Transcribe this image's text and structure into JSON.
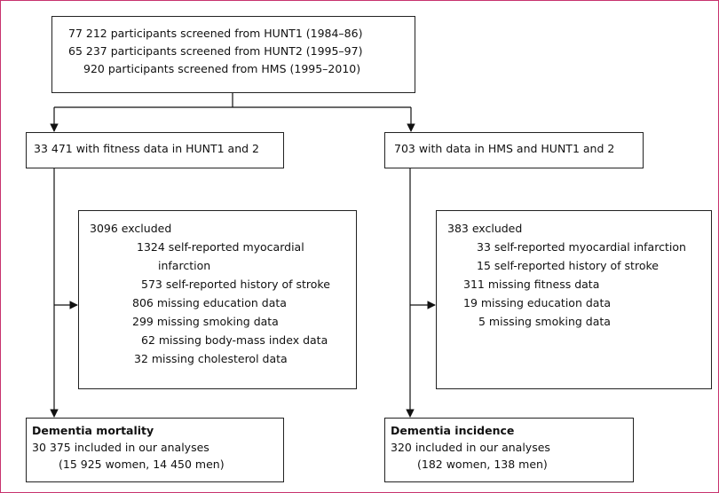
{
  "nodes": [
    {
      "lines": [
        "77 212 participants screened from HUNT1 (1984–86)",
        "65 237 participants screened from HUNT2 (1995–97)",
        "920 participants screened from HMS (1995–2010)"
      ]
    },
    {
      "lines": [
        "33 471 with fitness data in HUNT1 and 2"
      ]
    },
    {
      "lines": [
        "703 with data in HMS and HUNT1 and 2"
      ]
    },
    {
      "lines": [
        "3096 excluded",
        "1324 self-reported myocardial",
        "infarction",
        "573 self-reported history of stroke",
        "806 missing education data",
        "299 missing smoking data",
        "62 missing body-mass index data",
        "32 missing cholesterol data"
      ]
    },
    {
      "lines": [
        "383 excluded",
        "33 self-reported myocardial infarction",
        "15 self-reported history of stroke",
        "311 missing fitness data",
        "19 missing education data",
        "5 missing smoking data"
      ]
    },
    {
      "title": "Dementia mortality",
      "lines": [
        "30 375 included in our analyses",
        "(15 925 women, 14 450 men)"
      ]
    },
    {
      "title": "Dementia incidence",
      "lines": [
        "320 included in our analyses",
        "(182 women, 138 men)"
      ]
    }
  ]
}
